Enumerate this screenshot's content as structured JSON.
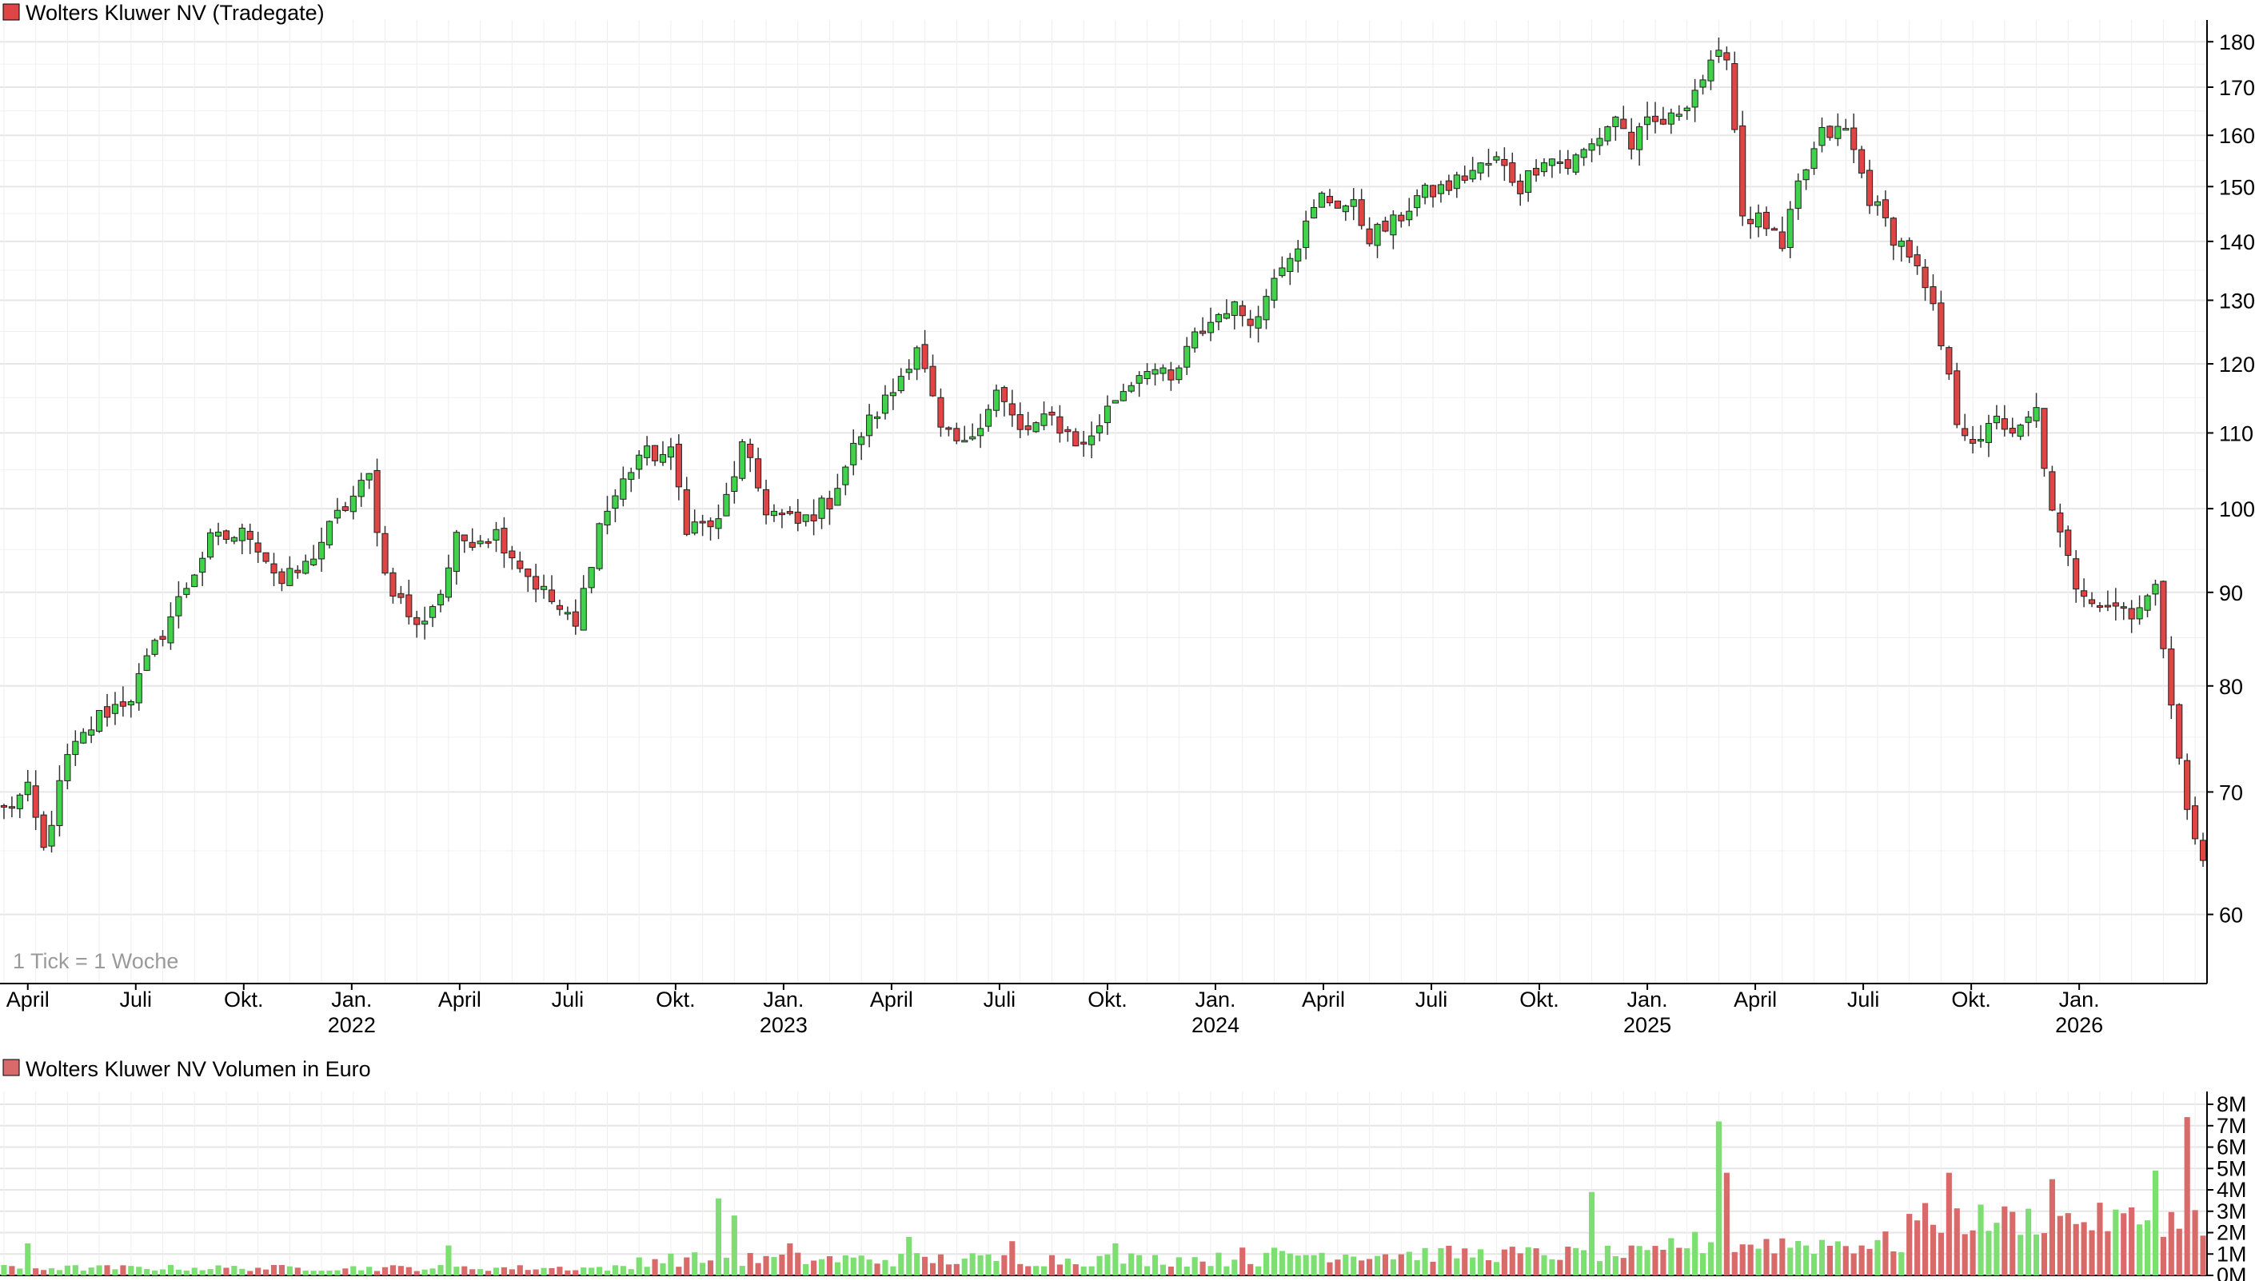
{
  "colors": {
    "up": "#3fd24a",
    "down": "#e04444",
    "vol_up": "#7ddf72",
    "vol_down": "#d86a6a",
    "grid": "#e6e6e6",
    "axis": "#000000"
  },
  "chart_data": [
    {
      "type": "candlestick",
      "title": "Wolters Kluwer NV (Tradegate)",
      "note": "1 Tick = 1 Woche",
      "y_scale": "log",
      "ylim": [
        55,
        185
      ],
      "y_ticks": [
        60,
        70,
        80,
        90,
        100,
        110,
        120,
        130,
        140,
        150,
        160,
        170,
        180
      ],
      "x_ticks": [
        {
          "label": "April",
          "year": ""
        },
        {
          "label": "Juli",
          "year": ""
        },
        {
          "label": "Okt.",
          "year": ""
        },
        {
          "label": "Jan.",
          "year": "2022"
        },
        {
          "label": "April",
          "year": ""
        },
        {
          "label": "Juli",
          "year": ""
        },
        {
          "label": "Okt.",
          "year": ""
        },
        {
          "label": "Jan.",
          "year": "2023"
        },
        {
          "label": "April",
          "year": ""
        },
        {
          "label": "Juli",
          "year": ""
        },
        {
          "label": "Okt.",
          "year": ""
        },
        {
          "label": "Jan.",
          "year": "2024"
        },
        {
          "label": "April",
          "year": ""
        },
        {
          "label": "Juli",
          "year": ""
        },
        {
          "label": "Okt.",
          "year": ""
        },
        {
          "label": "Jan.",
          "year": "2025"
        },
        {
          "label": "April",
          "year": ""
        },
        {
          "label": "Juli",
          "year": ""
        },
        {
          "label": "Okt.",
          "year": ""
        },
        {
          "label": "Jan.",
          "year": "2026"
        }
      ],
      "close_anchors": [
        [
          0,
          68.5
        ],
        [
          3,
          70
        ],
        [
          5,
          65
        ],
        [
          8,
          73
        ],
        [
          12,
          77
        ],
        [
          16,
          79
        ],
        [
          22,
          89
        ],
        [
          26,
          96
        ],
        [
          31,
          97
        ],
        [
          35,
          91
        ],
        [
          38,
          93
        ],
        [
          42,
          99
        ],
        [
          46,
          104
        ],
        [
          48,
          92
        ],
        [
          52,
          86
        ],
        [
          55,
          90
        ],
        [
          57,
          96
        ],
        [
          62,
          97
        ],
        [
          66,
          92
        ],
        [
          70,
          88
        ],
        [
          72,
          86
        ],
        [
          75,
          98
        ],
        [
          80,
          107
        ],
        [
          84,
          107
        ],
        [
          86,
          98
        ],
        [
          90,
          98
        ],
        [
          93,
          108
        ],
        [
          96,
          100
        ],
        [
          100,
          98
        ],
        [
          104,
          101
        ],
        [
          108,
          110
        ],
        [
          112,
          116
        ],
        [
          115,
          123
        ],
        [
          118,
          110
        ],
        [
          121,
          108
        ],
        [
          125,
          116
        ],
        [
          128,
          110
        ],
        [
          132,
          112
        ],
        [
          136,
          108
        ],
        [
          140,
          115
        ],
        [
          144,
          120
        ],
        [
          147,
          117
        ],
        [
          150,
          124
        ],
        [
          154,
          129
        ],
        [
          158,
          127
        ],
        [
          160,
          135
        ],
        [
          163,
          140
        ],
        [
          166,
          148
        ],
        [
          170,
          146
        ],
        [
          172,
          141
        ],
        [
          175,
          143
        ],
        [
          178,
          148
        ],
        [
          182,
          150
        ],
        [
          185,
          153
        ],
        [
          188,
          155
        ],
        [
          191,
          150
        ],
        [
          194,
          156
        ],
        [
          197,
          154
        ],
        [
          200,
          158
        ],
        [
          203,
          164
        ],
        [
          205,
          158
        ],
        [
          207,
          162
        ],
        [
          210,
          163
        ],
        [
          214,
          172
        ],
        [
          217,
          178
        ],
        [
          219,
          145
        ],
        [
          222,
          143
        ],
        [
          224,
          138
        ],
        [
          226,
          150
        ],
        [
          229,
          160
        ],
        [
          232,
          161
        ],
        [
          235,
          148
        ],
        [
          238,
          141
        ],
        [
          240,
          138
        ],
        [
          243,
          128
        ],
        [
          246,
          112
        ],
        [
          249,
          108
        ],
        [
          251,
          113
        ],
        [
          253,
          109
        ],
        [
          256,
          113
        ],
        [
          258,
          99
        ],
        [
          261,
          91
        ],
        [
          264,
          89
        ],
        [
          268,
          88
        ],
        [
          271,
          90
        ],
        [
          273,
          79
        ],
        [
          275,
          68
        ],
        [
          277,
          64
        ]
      ],
      "volume_axis": {
        "unit": "M",
        "ticks": [
          0,
          1,
          2,
          3,
          4,
          5,
          6,
          7,
          8
        ]
      },
      "volume_title": "Wolters Kluwer NV Volumen in Euro",
      "volume_spikes": [
        [
          3,
          1.5
        ],
        [
          56,
          1.4
        ],
        [
          90,
          3.6
        ],
        [
          92,
          2.8
        ],
        [
          99,
          1.5
        ],
        [
          114,
          1.8
        ],
        [
          127,
          1.6
        ],
        [
          140,
          1.5
        ],
        [
          156,
          1.3
        ],
        [
          200,
          3.9
        ],
        [
          216,
          7.2
        ],
        [
          217,
          4.8
        ],
        [
          245,
          4.8
        ],
        [
          258,
          4.5
        ],
        [
          271,
          4.9
        ],
        [
          275,
          7.4
        ]
      ]
    }
  ]
}
